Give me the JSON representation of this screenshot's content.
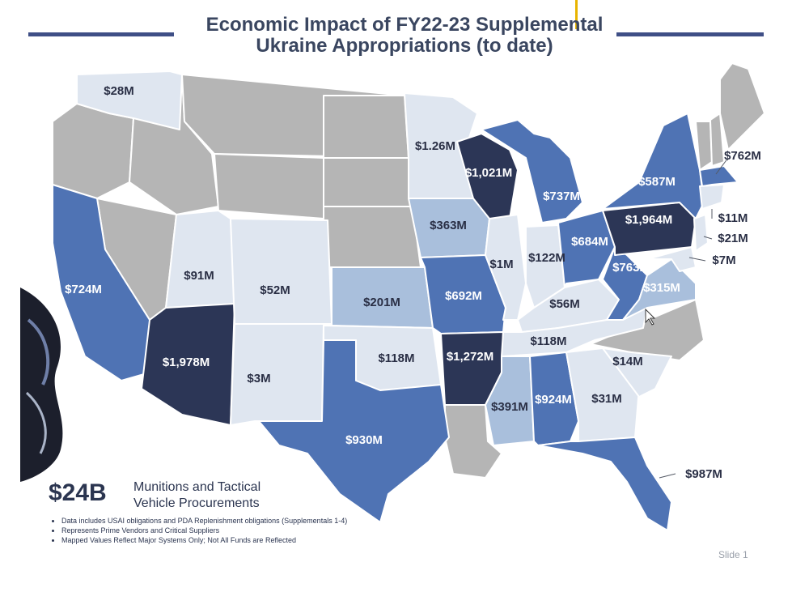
{
  "title": {
    "line1": "Economic Impact of FY22-23 Supplemental",
    "line2": "Ukraine Appropriations (to date)"
  },
  "colors": {
    "no_data": "#b5b5b5",
    "lowest": "#dfe6f0",
    "low": "#a9bfdc",
    "mid": "#4f73b4",
    "high": "#2c3656",
    "divider": "#ffffff",
    "title_text": "#3a4660",
    "title_rule": "#3f4f86"
  },
  "states": {
    "WA": {
      "value": "$28M",
      "tier": "lowest"
    },
    "CA": {
      "value": "$724M",
      "tier": "mid"
    },
    "UT": {
      "value": "$91M",
      "tier": "lowest"
    },
    "AZ": {
      "value": "$1,978M",
      "tier": "high"
    },
    "CO": {
      "value": "$52M",
      "tier": "lowest"
    },
    "NM": {
      "value": "$3M",
      "tier": "lowest"
    },
    "KS": {
      "value": "$201M",
      "tier": "low"
    },
    "OK": {
      "value": "$118M",
      "tier": "lowest"
    },
    "TX": {
      "value": "$930M",
      "tier": "mid"
    },
    "MN": {
      "value": "$1.26M",
      "tier": "lowest"
    },
    "IA": {
      "value": "$363M",
      "tier": "low"
    },
    "MO": {
      "value": "$692M",
      "tier": "mid"
    },
    "AR": {
      "value": "$1,272M",
      "tier": "high"
    },
    "WI": {
      "value": "$1,021M",
      "tier": "high"
    },
    "IL": {
      "value": "$1M",
      "tier": "lowest"
    },
    "MI": {
      "value": "$737M",
      "tier": "mid"
    },
    "IN": {
      "value": "$122M",
      "tier": "lowest"
    },
    "OH": {
      "value": "$684M",
      "tier": "mid"
    },
    "KY": {
      "value": "$56M",
      "tier": "lowest"
    },
    "TN": {
      "value": "$118M",
      "tier": "lowest"
    },
    "MS": {
      "value": "$391M",
      "tier": "low"
    },
    "AL": {
      "value": "$924M",
      "tier": "mid"
    },
    "GA": {
      "value": "$31M",
      "tier": "lowest"
    },
    "SC": {
      "value": "$14M",
      "tier": "lowest"
    },
    "FL": {
      "value": "$987M",
      "tier": "mid"
    },
    "WV": {
      "value": "$763M",
      "tier": "mid"
    },
    "VA": {
      "value": "$315M",
      "tier": "low"
    },
    "PA": {
      "value": "$1,964M",
      "tier": "high"
    },
    "NY": {
      "value": "$587M",
      "tier": "mid"
    },
    "MA": {
      "value": "$762M",
      "tier": "mid"
    },
    "CT": {
      "value": "$11M",
      "tier": "lowest"
    },
    "NJ": {
      "value": "$21M",
      "tier": "lowest"
    },
    "MD": {
      "value": "$7M",
      "tier": "lowest"
    }
  },
  "summary": {
    "total": "$24B",
    "description_line1": "Munitions and Tactical",
    "description_line2": "Vehicle Procurements"
  },
  "notes": [
    "Data includes USAI obligations and PDA Replenishment obligations (Supplementals 1-4)",
    "Represents Prime Vendors and Critical Suppliers",
    "Mapped Values Reflect Major Systems Only; Not All Funds are Reflected"
  ],
  "slide_label": "Slide 1"
}
